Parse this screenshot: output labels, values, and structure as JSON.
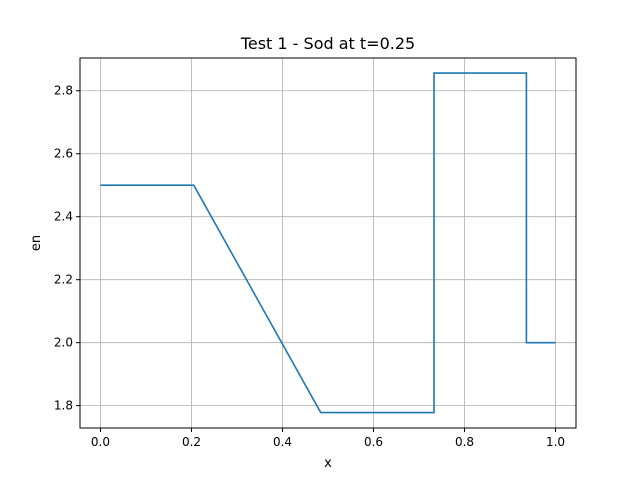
{
  "chart_data": {
    "type": "line",
    "title": "Test 1 - Sod at t=0.25",
    "xlabel": "x",
    "ylabel": "en",
    "xlim": [
      -0.045,
      1.045
    ],
    "ylim": [
      1.729,
      2.904
    ],
    "xticks": [
      0.0,
      0.2,
      0.4,
      0.6,
      0.8,
      1.0
    ],
    "xtick_labels": [
      "0.0",
      "0.2",
      "0.4",
      "0.6",
      "0.8",
      "1.0"
    ],
    "yticks": [
      1.8,
      2.0,
      2.2,
      2.4,
      2.6,
      2.8
    ],
    "ytick_labels": [
      "1.8",
      "2.0",
      "2.2",
      "2.4",
      "2.6",
      "2.8"
    ],
    "grid": true,
    "series": [
      {
        "color": "#1f77b4",
        "x": [
          0.0,
          0.205,
          0.484,
          0.733,
          0.733,
          0.936,
          0.936,
          1.0
        ],
        "y": [
          2.5,
          2.5,
          1.778,
          1.778,
          2.856,
          2.856,
          2.0,
          2.0
        ]
      }
    ]
  }
}
